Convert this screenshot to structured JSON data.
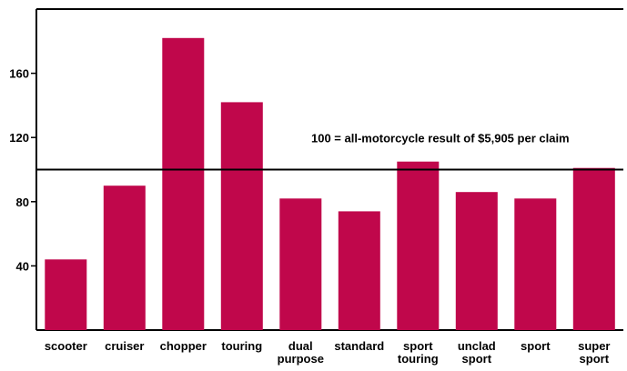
{
  "chart_data": {
    "type": "bar",
    "categories": [
      [
        "scooter"
      ],
      [
        "cruiser"
      ],
      [
        "chopper"
      ],
      [
        "touring"
      ],
      [
        "dual",
        "purpose"
      ],
      [
        "standard"
      ],
      [
        "sport",
        "touring"
      ],
      [
        "unclad",
        "sport"
      ],
      [
        "sport"
      ],
      [
        "super",
        "sport"
      ]
    ],
    "values": [
      44,
      90,
      182,
      142,
      82,
      74,
      105,
      86,
      82,
      101
    ],
    "ylim": [
      0,
      200
    ],
    "yticks": [
      40,
      80,
      120,
      160
    ],
    "reference_line": {
      "value": 100,
      "label": "100 = all-motorcycle result of $5,905 per claim"
    },
    "bar_color": "#C0074B",
    "grid": false,
    "title": "",
    "xlabel": "",
    "ylabel": ""
  }
}
